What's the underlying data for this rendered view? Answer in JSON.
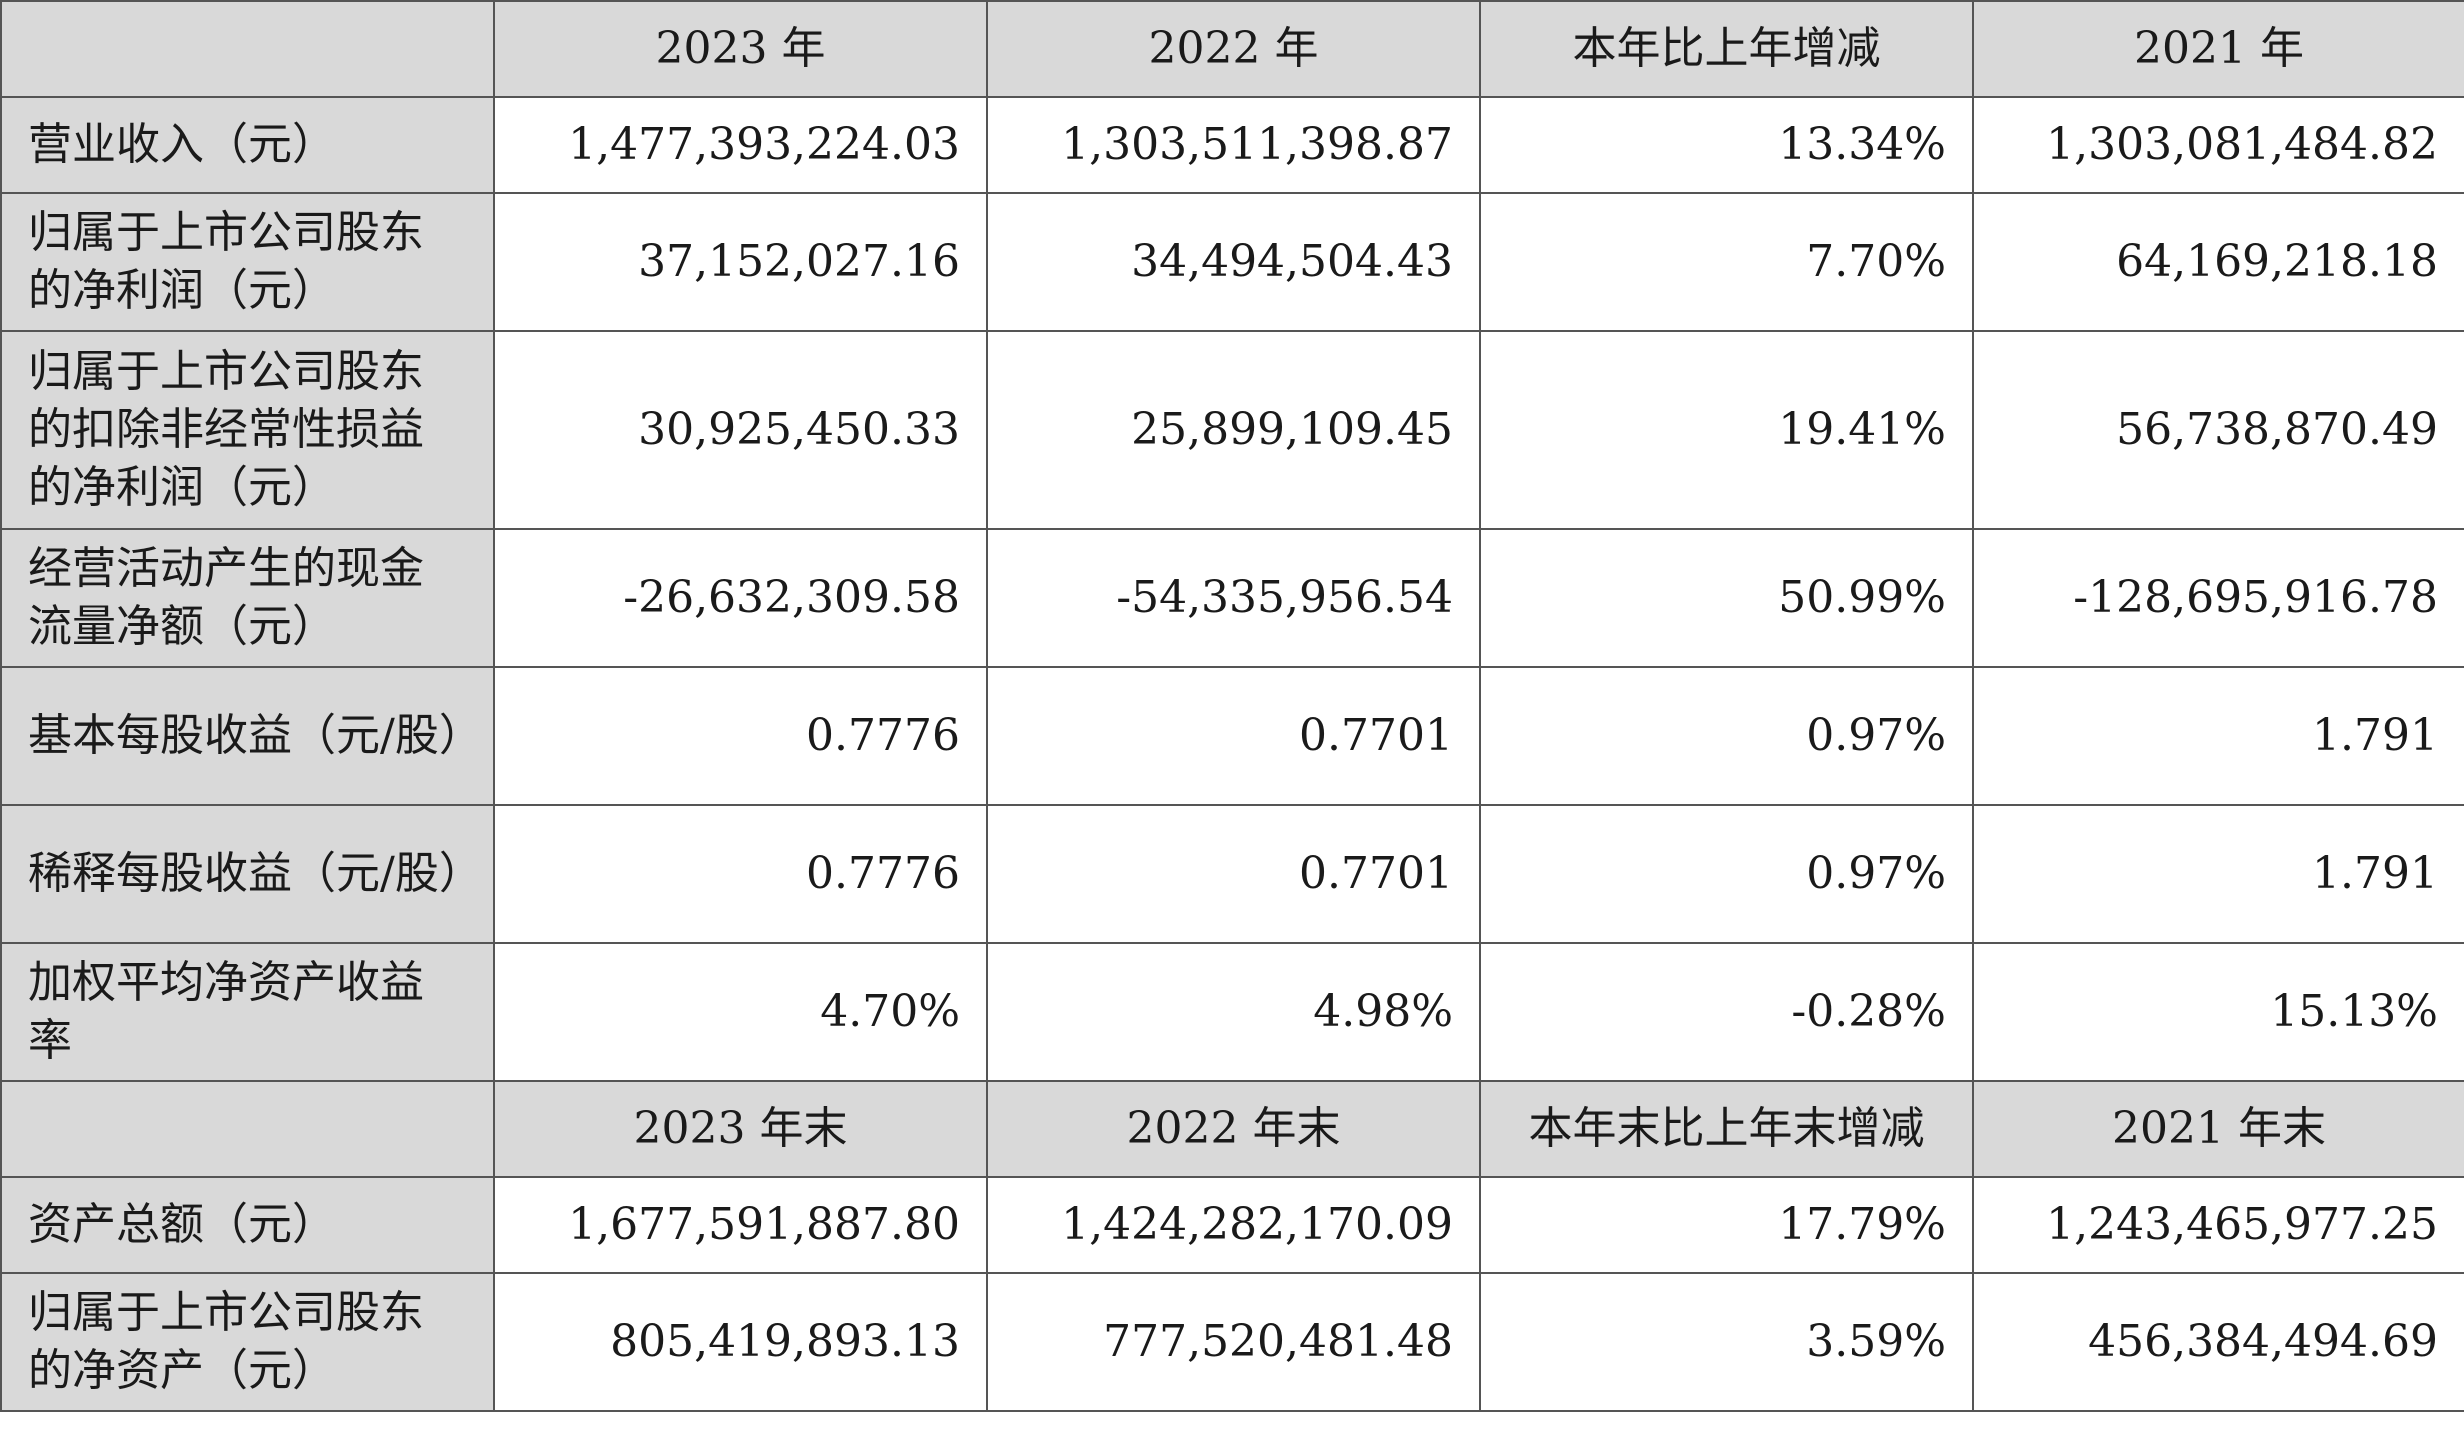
{
  "header1": {
    "corner": "",
    "cols": [
      "2023 年",
      "2022 年",
      "本年比上年增减",
      "2021 年"
    ]
  },
  "rows1": [
    {
      "label": "营业收入（元）",
      "values": [
        "1,477,393,224.03",
        "1,303,511,398.87",
        "13.34%",
        "1,303,081,484.82"
      ]
    },
    {
      "label": "归属于上市公司股东的净利润（元）",
      "values": [
        "37,152,027.16",
        "34,494,504.43",
        "7.70%",
        "64,169,218.18"
      ]
    },
    {
      "label": "归属于上市公司股东的扣除非经常性损益的净利润（元）",
      "values": [
        "30,925,450.33",
        "25,899,109.45",
        "19.41%",
        "56,738,870.49"
      ]
    },
    {
      "label": "经营活动产生的现金流量净额（元）",
      "values": [
        "-26,632,309.58",
        "-54,335,956.54",
        "50.99%",
        "-128,695,916.78"
      ]
    },
    {
      "label": "基本每股收益（元/股）",
      "values": [
        "0.7776",
        "0.7701",
        "0.97%",
        "1.791"
      ]
    },
    {
      "label": "稀释每股收益（元/股）",
      "values": [
        "0.7776",
        "0.7701",
        "0.97%",
        "1.791"
      ]
    },
    {
      "label": "加权平均净资产收益率",
      "values": [
        "4.70%",
        "4.98%",
        "-0.28%",
        "15.13%"
      ]
    }
  ],
  "header2": {
    "corner": "",
    "cols": [
      "2023 年末",
      "2022 年末",
      "本年末比上年末增减",
      "2021 年末"
    ]
  },
  "rows2": [
    {
      "label": "资产总额（元）",
      "values": [
        "1,677,591,887.80",
        "1,424,282,170.09",
        "17.79%",
        "1,243,465,977.25"
      ]
    },
    {
      "label": "归属于上市公司股东的净资产（元）",
      "values": [
        "805,419,893.13",
        "777,520,481.48",
        "3.59%",
        "456,384,494.69"
      ]
    }
  ]
}
